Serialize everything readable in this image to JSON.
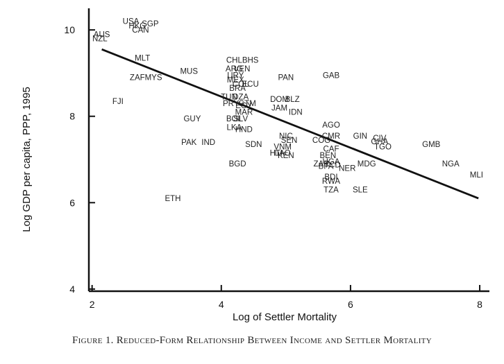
{
  "caption": "Figure 1. Reduced-Form Relationship Between Income and Settler Mortality",
  "chart_data": {
    "type": "scatter",
    "title": "",
    "xlabel": "Log of Settler Mortality",
    "ylabel": "Log GDP per capita, PPP, 1995",
    "xlim": [
      1.95,
      8.15
    ],
    "ylim": [
      3.95,
      10.5
    ],
    "x_ticks": [
      2,
      4,
      6,
      8
    ],
    "y_ticks": [
      4,
      6,
      8,
      10
    ],
    "grid": false,
    "fit_line": {
      "x": [
        2.15,
        7.98
      ],
      "y": [
        9.55,
        6.1
      ]
    },
    "points": [
      {
        "label": "USA",
        "x": 2.6,
        "y": 10.2
      },
      {
        "label": "SGP",
        "x": 2.9,
        "y": 10.15
      },
      {
        "label": "HKG",
        "x": 2.7,
        "y": 10.1
      },
      {
        "label": "CAN",
        "x": 2.75,
        "y": 10.0
      },
      {
        "label": "AUS",
        "x": 2.15,
        "y": 9.9
      },
      {
        "label": "NZL",
        "x": 2.12,
        "y": 9.8
      },
      {
        "label": "MLT",
        "x": 2.78,
        "y": 9.35
      },
      {
        "label": "MUS",
        "x": 3.5,
        "y": 9.05
      },
      {
        "label": "ZAF",
        "x": 2.7,
        "y": 8.9
      },
      {
        "label": "MYS",
        "x": 2.95,
        "y": 8.9
      },
      {
        "label": "FJI",
        "x": 2.4,
        "y": 8.35
      },
      {
        "label": "GUY",
        "x": 3.55,
        "y": 7.95
      },
      {
        "label": "PAK",
        "x": 3.5,
        "y": 7.4
      },
      {
        "label": "IND",
        "x": 3.8,
        "y": 7.4
      },
      {
        "label": "ETH",
        "x": 3.25,
        "y": 6.1
      },
      {
        "label": "CHL",
        "x": 4.2,
        "y": 9.3
      },
      {
        "label": "BHS",
        "x": 4.45,
        "y": 9.3
      },
      {
        "label": "ARG",
        "x": 4.2,
        "y": 9.1
      },
      {
        "label": "VEN",
        "x": 4.32,
        "y": 9.1
      },
      {
        "label": "URY",
        "x": 4.22,
        "y": 8.95
      },
      {
        "label": "MEX",
        "x": 4.22,
        "y": 8.85
      },
      {
        "label": "COL",
        "x": 4.3,
        "y": 8.75
      },
      {
        "label": "ECU",
        "x": 4.45,
        "y": 8.75
      },
      {
        "label": "BRA",
        "x": 4.25,
        "y": 8.65
      },
      {
        "label": "TUN",
        "x": 4.12,
        "y": 8.45
      },
      {
        "label": "DZA",
        "x": 4.3,
        "y": 8.45
      },
      {
        "label": "PRY",
        "x": 4.15,
        "y": 8.3
      },
      {
        "label": "GTM",
        "x": 4.4,
        "y": 8.3
      },
      {
        "label": "EGY",
        "x": 4.35,
        "y": 8.25
      },
      {
        "label": "MAR",
        "x": 4.35,
        "y": 8.1
      },
      {
        "label": "BOL",
        "x": 4.2,
        "y": 7.95
      },
      {
        "label": "SLV",
        "x": 4.3,
        "y": 7.95
      },
      {
        "label": "LKA",
        "x": 4.2,
        "y": 7.75
      },
      {
        "label": "HND",
        "x": 4.35,
        "y": 7.7
      },
      {
        "label": "SDN",
        "x": 4.5,
        "y": 7.35
      },
      {
        "label": "BGD",
        "x": 4.25,
        "y": 6.9
      },
      {
        "label": "PAN",
        "x": 5.0,
        "y": 8.9
      },
      {
        "label": "GAB",
        "x": 5.7,
        "y": 8.95
      },
      {
        "label": "DOM",
        "x": 4.9,
        "y": 8.4
      },
      {
        "label": "BLZ",
        "x": 5.1,
        "y": 8.4
      },
      {
        "label": "JAM",
        "x": 4.9,
        "y": 8.2
      },
      {
        "label": "IDN",
        "x": 5.15,
        "y": 8.1
      },
      {
        "label": "AGO",
        "x": 5.7,
        "y": 7.8
      },
      {
        "label": "NIC",
        "x": 5.0,
        "y": 7.55
      },
      {
        "label": "CMR",
        "x": 5.7,
        "y": 7.55
      },
      {
        "label": "SEN",
        "x": 5.05,
        "y": 7.45
      },
      {
        "label": "COG",
        "x": 5.55,
        "y": 7.45
      },
      {
        "label": "VNM",
        "x": 4.95,
        "y": 7.3
      },
      {
        "label": "HTI",
        "x": 4.85,
        "y": 7.15
      },
      {
        "label": "LAO",
        "x": 4.95,
        "y": 7.15
      },
      {
        "label": "KEN",
        "x": 5.0,
        "y": 7.1
      },
      {
        "label": "CAF",
        "x": 5.7,
        "y": 7.25
      },
      {
        "label": "BEN",
        "x": 5.65,
        "y": 7.1
      },
      {
        "label": "UGA",
        "x": 5.7,
        "y": 6.95
      },
      {
        "label": "ZAR",
        "x": 5.55,
        "y": 6.9
      },
      {
        "label": "TCD",
        "x": 5.72,
        "y": 6.88
      },
      {
        "label": "BFA",
        "x": 5.62,
        "y": 6.85
      },
      {
        "label": "NER",
        "x": 5.95,
        "y": 6.8
      },
      {
        "label": "MDG",
        "x": 6.25,
        "y": 6.9
      },
      {
        "label": "BDI",
        "x": 5.7,
        "y": 6.6
      },
      {
        "label": "RWA",
        "x": 5.7,
        "y": 6.5
      },
      {
        "label": "TZA",
        "x": 5.7,
        "y": 6.3
      },
      {
        "label": "SLE",
        "x": 6.15,
        "y": 6.3
      },
      {
        "label": "GIN",
        "x": 6.15,
        "y": 7.55
      },
      {
        "label": "CIV",
        "x": 6.45,
        "y": 7.5
      },
      {
        "label": "GHA",
        "x": 6.45,
        "y": 7.42
      },
      {
        "label": "TGO",
        "x": 6.5,
        "y": 7.3
      },
      {
        "label": "GMB",
        "x": 7.25,
        "y": 7.35
      },
      {
        "label": "NGA",
        "x": 7.55,
        "y": 6.9
      },
      {
        "label": "MLI",
        "x": 7.95,
        "y": 6.65
      }
    ]
  }
}
